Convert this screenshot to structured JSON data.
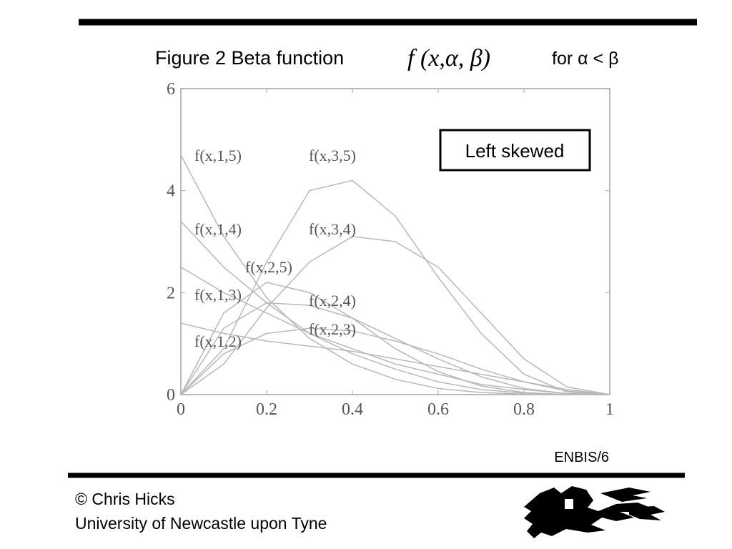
{
  "slide": {
    "page_label": "ENBIS/6",
    "footer": [
      "© Chris Hicks",
      "University of Newcastle upon Tyne"
    ]
  },
  "chart_data": {
    "type": "line",
    "title": "Figure 2 Beta function",
    "title_formula": "f (x,α, β)",
    "title_suffix": "for α < β",
    "annotation": "Left skewed",
    "x": [
      0,
      0.1,
      0.2,
      0.3,
      0.4,
      0.5,
      0.6,
      0.7,
      0.8,
      0.9,
      1
    ],
    "xlim": [
      0,
      1
    ],
    "xticks": [
      0,
      0.2,
      0.4,
      0.6,
      0.8,
      1
    ],
    "ylim": [
      0,
      6
    ],
    "yticks": [
      0,
      2,
      4,
      6
    ],
    "series": [
      {
        "name": "f(x,1,5)",
        "color": "#b8b8b8",
        "values": [
          4.7,
          3.1,
          1.9,
          1.1,
          0.6,
          0.3,
          0.12,
          0.04,
          0.01,
          0,
          0
        ]
      },
      {
        "name": "f(x,3,5)",
        "color": "#b8b8b8",
        "values": [
          0,
          0.9,
          2.6,
          4.0,
          4.2,
          3.5,
          2.3,
          1.2,
          0.4,
          0.05,
          0
        ]
      },
      {
        "name": "f(x,1,4)",
        "color": "#b8b8b8",
        "values": [
          3.4,
          2.5,
          1.8,
          1.2,
          0.8,
          0.5,
          0.25,
          0.1,
          0.03,
          0,
          0
        ]
      },
      {
        "name": "f(x,3,4)",
        "color": "#b8b8b8",
        "values": [
          0,
          0.6,
          1.7,
          2.6,
          3.1,
          3.0,
          2.5,
          1.6,
          0.7,
          0.15,
          0
        ]
      },
      {
        "name": "f(x,2,5)",
        "color": "#b8b8b8",
        "values": [
          0,
          1.6,
          2.2,
          2.0,
          1.5,
          0.9,
          0.45,
          0.17,
          0.04,
          0,
          0
        ]
      },
      {
        "name": "f(x,1,3)",
        "color": "#b8b8b8",
        "values": [
          2.5,
          2.0,
          1.6,
          1.2,
          0.9,
          0.6,
          0.4,
          0.2,
          0.1,
          0.02,
          0
        ]
      },
      {
        "name": "f(x,2,4)",
        "color": "#b8b8b8",
        "values": [
          0,
          1.3,
          1.8,
          1.75,
          1.5,
          1.1,
          0.7,
          0.35,
          0.12,
          0.02,
          0
        ]
      },
      {
        "name": "f(x,2,3)",
        "color": "#b8b8b8",
        "values": [
          0,
          0.8,
          1.2,
          1.3,
          1.25,
          1.05,
          0.8,
          0.5,
          0.25,
          0.07,
          0
        ]
      },
      {
        "name": "f(x,1,2)",
        "color": "#b8b8b8",
        "values": [
          1.4,
          1.2,
          1.05,
          0.95,
          0.85,
          0.7,
          0.55,
          0.4,
          0.25,
          0.1,
          0
        ]
      }
    ]
  }
}
